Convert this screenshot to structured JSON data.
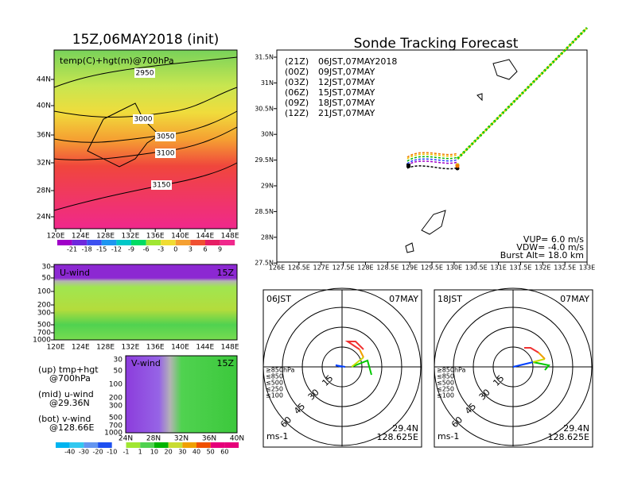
{
  "left": {
    "title": "15Z,06MAY2018 (init)",
    "map": {
      "label": "temp(C)+hgt(m)@700hPa",
      "lat_labels": [
        "44N",
        "40N",
        "36N",
        "32N",
        "28N",
        "24N"
      ],
      "lon_labels": [
        "120E",
        "124E",
        "128E",
        "132E",
        "136E",
        "140E",
        "144E",
        "148E"
      ],
      "contour_labels": [
        "2950",
        "3000",
        "3050",
        "3100",
        "3150"
      ]
    },
    "temp_colorbar": [
      "-21",
      "-18",
      "-15",
      "-12",
      "-9",
      "-6",
      "-3",
      "0",
      "3",
      "6",
      "9"
    ],
    "u_wind": {
      "label": "U-wind",
      "time": "15Z",
      "levels": [
        "30",
        "50",
        "100",
        "200",
        "300",
        "500",
        "700",
        "1000"
      ],
      "lon_labels": [
        "120E",
        "124E",
        "128E",
        "132E",
        "136E",
        "140E",
        "144E",
        "148E"
      ]
    },
    "v_wind": {
      "label": "V-wind",
      "time": "15Z",
      "levels": [
        "30",
        "50",
        "100",
        "200",
        "300",
        "500",
        "700",
        "1000"
      ],
      "lat_labels": [
        "24N",
        "28N",
        "32N",
        "36N",
        "40N"
      ]
    },
    "notes": [
      "(up) tmp+hgt",
      "@700hPa",
      "(mid) u-wind",
      "@29.36N",
      "(bot) v-wind",
      "@128.66E"
    ],
    "wind_colorbar": [
      "-40",
      "-30",
      "-20",
      "-10",
      "-1",
      "1",
      "10",
      "20",
      "30",
      "40",
      "50",
      "60"
    ]
  },
  "right": {
    "title": "Sonde Tracking Forecast",
    "lat_labels": [
      "31.5N",
      "31N",
      "30.5N",
      "30N",
      "29.5N",
      "29N",
      "28.5N",
      "28N",
      "27.5N"
    ],
    "lon_labels": [
      "126E",
      "126.5E",
      "127E",
      "127.5E",
      "128E",
      "128.5E",
      "129E",
      "129.5E",
      "130E",
      "130.5E",
      "131E",
      "131.5E",
      "132E",
      "132.5E",
      "133E"
    ],
    "legend": [
      {
        "utc": "(21Z)",
        "jst": "06JST,07MAY2018"
      },
      {
        "utc": "(00Z)",
        "jst": "09JST,07MAY"
      },
      {
        "utc": "(03Z)",
        "jst": "12JST,07MAY"
      },
      {
        "utc": "(06Z)",
        "jst": "15JST,07MAY"
      },
      {
        "utc": "(09Z)",
        "jst": "18JST,07MAY"
      },
      {
        "utc": "(12Z)",
        "jst": "21JST,07MAY"
      }
    ],
    "info": [
      "VUP=  6.0 m/s",
      "VDW= -4.0 m/s",
      "Burst Alt= 18.0 km"
    ]
  },
  "hodographs": [
    {
      "time": "06JST",
      "date": "07MAY",
      "lat": "29.4N",
      "lon": "128.625E",
      "unit": "ms-1",
      "rings": [
        "15",
        "30",
        "45",
        "60"
      ],
      "levels": [
        "≥850hPa",
        "≤850",
        "≤500",
        "≤250",
        "≤100"
      ]
    },
    {
      "time": "18JST",
      "date": "07MAY",
      "lat": "29.4N",
      "lon": "128.625E",
      "unit": "ms-1",
      "rings": [
        "15",
        "30",
        "45",
        "60"
      ],
      "levels": [
        "≥850hPa",
        "≤850",
        "≤500",
        "≤250",
        "≤100"
      ]
    }
  ]
}
